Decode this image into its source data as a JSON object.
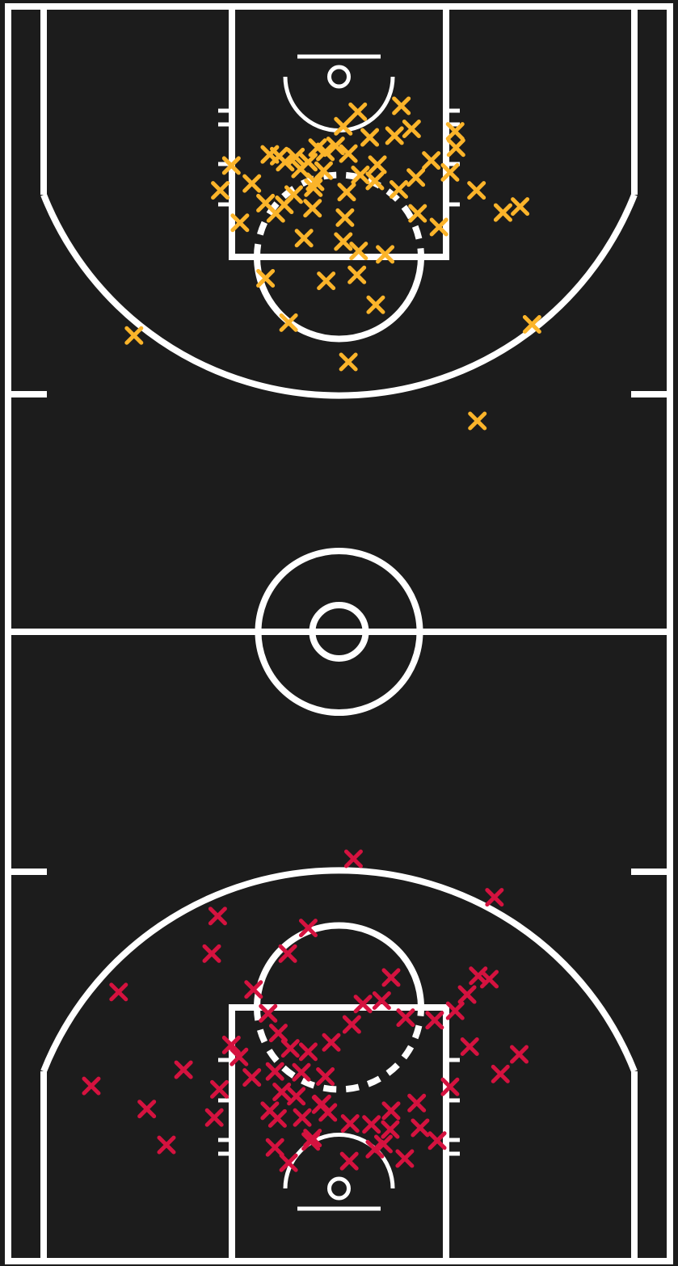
{
  "chart_data": {
    "type": "scatter",
    "title": "",
    "xlabel": "",
    "ylabel": "",
    "grid": false,
    "legend": "none",
    "court": {
      "background_color": "#1c1c1c",
      "line_color": "#ffffff",
      "length_ft": 94,
      "width_ft": 50
    },
    "series": [
      {
        "color": "#fbb42a",
        "marker": "x",
        "points": [
          [
            2.2,
            4.1
          ],
          [
            6.5,
            6.9
          ],
          [
            7.3,
            3.4
          ],
          [
            2.5,
            11.5
          ],
          [
            -2.5,
            8.3
          ],
          [
            -6.3,
            10.0
          ],
          [
            -4.5,
            10.8
          ],
          [
            -5.1,
            9.4
          ],
          [
            -8.1,
            9.1
          ],
          [
            -10.2,
            12.5
          ],
          [
            -12.6,
            10.4
          ],
          [
            -13.9,
            13.3
          ],
          [
            -11.6,
            17.1
          ],
          [
            0.9,
            13.5
          ],
          [
            0.7,
            16.5
          ],
          [
            4.2,
            12.2
          ],
          [
            4.5,
            10.3
          ],
          [
            7.0,
            13.2
          ],
          [
            9.0,
            11.8
          ],
          [
            13.0,
            11.2
          ],
          [
            13.7,
            8.3
          ],
          [
            9.2,
            16.0
          ],
          [
            11.7,
            17.6
          ],
          [
            16.1,
            13.3
          ],
          [
            13.6,
            6.4
          ],
          [
            10.8,
            9.8
          ],
          [
            8.5,
            6.1
          ],
          [
            -0.4,
            8.1
          ],
          [
            -3.6,
            10.0
          ],
          [
            -7.0,
            9.3
          ],
          [
            -3.0,
            13.0
          ],
          [
            -1.8,
            11.0
          ],
          [
            1.1,
            9.0
          ],
          [
            0.5,
            5.8
          ],
          [
            -1.6,
            8.8
          ],
          [
            3.6,
            7.1
          ],
          [
            -6.4,
            15.0
          ],
          [
            -5.3,
            13.8
          ],
          [
            -2.8,
            12.3
          ],
          [
            -3.1,
            15.4
          ],
          [
            -4.1,
            18.9
          ],
          [
            -8.6,
            14.8
          ],
          [
            -7.4,
            16.0
          ],
          [
            0.5,
            19.3
          ],
          [
            2.3,
            20.4
          ],
          [
            5.4,
            20.8
          ],
          [
            2.1,
            23.2
          ],
          [
            4.3,
            26.7
          ],
          [
            -1.5,
            23.9
          ],
          [
            -8.6,
            23.6
          ],
          [
            -5.9,
            28.8
          ],
          [
            1.1,
            33.4
          ],
          [
            19.2,
            15.9
          ],
          [
            21.2,
            15.2
          ],
          [
            -24.0,
            30.3
          ],
          [
            22.6,
            29.0
          ],
          [
            16.2,
            40.3
          ]
        ]
      },
      {
        "color": "#d5123f",
        "marker": "x",
        "points": [
          [
            -1.3,
            8.9
          ],
          [
            -3.1,
            5.9
          ],
          [
            1.2,
            3.2
          ],
          [
            1.3,
            7.6
          ],
          [
            4.2,
            4.6
          ],
          [
            5.2,
            5.2
          ],
          [
            3.8,
            7.5
          ],
          [
            6.1,
            9.1
          ],
          [
            9.1,
            10.0
          ],
          [
            6.0,
            6.9
          ],
          [
            7.7,
            3.5
          ],
          [
            9.5,
            7.1
          ],
          [
            -2.1,
            9.8
          ],
          [
            -5.0,
            10.8
          ],
          [
            -4.3,
            8.3
          ],
          [
            -3.3,
            5.5
          ],
          [
            -7.2,
            8.2
          ],
          [
            -7.5,
            4.8
          ],
          [
            -5.9,
            3.0
          ],
          [
            -6.7,
            11.3
          ],
          [
            -7.5,
            13.7
          ],
          [
            -8.1,
            9.1
          ],
          [
            -3.6,
            16.0
          ],
          [
            -0.9,
            17.1
          ],
          [
            -5.7,
            16.4
          ],
          [
            -4.4,
            13.6
          ],
          [
            -1.6,
            13.1
          ],
          [
            -2.0,
            9.9
          ],
          [
            -10.2,
            13.0
          ],
          [
            -11.7,
            15.4
          ],
          [
            -12.6,
            16.8
          ],
          [
            -14.0,
            11.6
          ],
          [
            -10.0,
            23.3
          ],
          [
            -7.1,
            18.2
          ],
          [
            -8.3,
            20.5
          ],
          [
            -6.0,
            27.5
          ],
          [
            1.5,
            19.2
          ],
          [
            2.8,
            21.6
          ],
          [
            5.0,
            22.0
          ],
          [
            6.1,
            24.7
          ],
          [
            7.8,
            20.0
          ],
          [
            11.2,
            19.7
          ],
          [
            13.6,
            20.8
          ],
          [
            15.0,
            22.7
          ],
          [
            16.3,
            24.9
          ],
          [
            17.6,
            24.5
          ],
          [
            21.1,
            15.7
          ],
          [
            15.3,
            16.6
          ],
          [
            18.9,
            13.4
          ],
          [
            11.5,
            5.6
          ],
          [
            13.0,
            11.9
          ],
          [
            -22.5,
            9.3
          ],
          [
            -14.6,
            8.3
          ],
          [
            -18.2,
            13.9
          ],
          [
            -20.2,
            5.1
          ],
          [
            -29.0,
            12.0
          ],
          [
            -25.8,
            23.0
          ],
          [
            -14.2,
            31.9
          ],
          [
            -14.9,
            27.5
          ],
          [
            1.7,
            38.6
          ],
          [
            18.2,
            34.1
          ],
          [
            -3.6,
            30.5
          ]
        ]
      }
    ]
  }
}
